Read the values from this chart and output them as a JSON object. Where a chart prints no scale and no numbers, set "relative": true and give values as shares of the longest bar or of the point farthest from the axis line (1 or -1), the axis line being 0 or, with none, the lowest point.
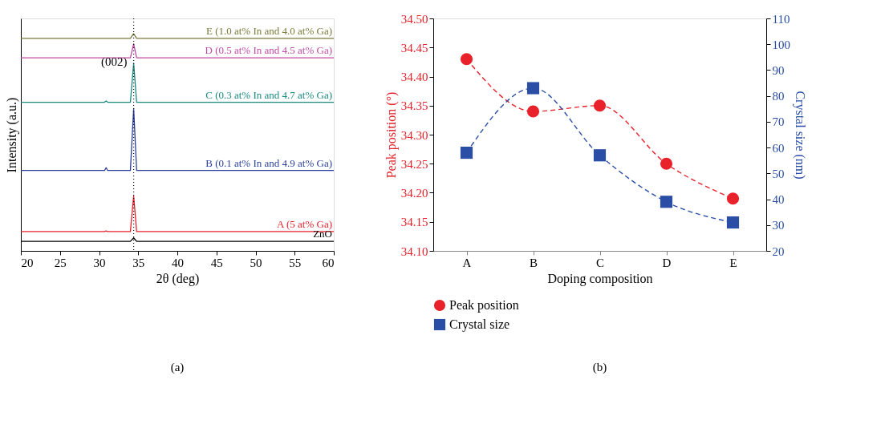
{
  "chart_data": [
    {
      "type": "line",
      "relative": true,
      "xlabel": "2θ (deg)",
      "ylabel": "Intensity (a.u.)",
      "xlim": [
        20,
        60
      ],
      "xticks": [
        20,
        25,
        30,
        35,
        40,
        45,
        50,
        55,
        60
      ],
      "legend": false,
      "grid": false,
      "tick_labels": "x",
      "x": [
        20,
        30.7,
        30.9,
        31.1,
        34.0,
        34.42,
        34.8,
        60
      ],
      "series": [
        {
          "name": "ZnO",
          "color": "#000000",
          "values": [
            0.044,
            0.044,
            0.044,
            0.044,
            0.044,
            0.06,
            0.044,
            0.044
          ]
        },
        {
          "name": "A (5 at% Ga)",
          "color": "#e8212a",
          "values": [
            0.089,
            0.089,
            0.092,
            0.089,
            0.089,
            0.253,
            0.089,
            0.089
          ]
        },
        {
          "name": "B (0.1 at% In and 4.9 at% Ga)",
          "color": "#2a3f9c",
          "values": [
            0.37,
            0.37,
            0.383,
            0.37,
            0.37,
            0.655,
            0.37,
            0.37
          ]
        },
        {
          "name": "C (0.3 at% In and 4.7 at% Ga)",
          "color": "#1a8a80",
          "values": [
            0.684,
            0.684,
            0.69,
            0.684,
            0.684,
            0.864,
            0.684,
            0.684
          ]
        },
        {
          "name": "D (0.5 at% In and 4.5 at% Ga)",
          "color": "#c04aa6",
          "values": [
            0.889,
            0.889,
            0.889,
            0.889,
            0.889,
            0.953,
            0.889,
            0.889
          ]
        },
        {
          "name": "E (1.0 at% In and 4.0 at% Ga)",
          "color": "#7a7a3a",
          "values": [
            0.978,
            0.978,
            0.978,
            0.978,
            0.978,
            1.0,
            0.978,
            0.978
          ]
        }
      ],
      "ref_lines": [
        {
          "axis": "x",
          "value": 34.42,
          "color": "#000000",
          "line_style": "dotted"
        }
      ],
      "annotations": [
        {
          "text": "(002)",
          "x": 34.42,
          "y": 0.87
        },
        "(a)"
      ]
    },
    {
      "type": "line",
      "categories": [
        "A",
        "B",
        "C",
        "D",
        "E"
      ],
      "xlabel": "Doping composition",
      "ylabel": "Peak position (°)",
      "y2label": "Crystal size (nm)",
      "ylim": [
        34.1,
        34.5
      ],
      "yticks": [
        {
          "value": 34.1,
          "label": "34.10"
        },
        34.15,
        {
          "value": 34.2,
          "label": "34.20"
        },
        34.25,
        {
          "value": 34.3,
          "label": "34.30"
        },
        34.35,
        {
          "value": 34.4,
          "label": "34.40"
        },
        34.45,
        {
          "value": 34.5,
          "label": "34.50"
        }
      ],
      "y2lim": [
        20,
        110
      ],
      "y2ticks": [
        20,
        30,
        40,
        50,
        60,
        70,
        80,
        90,
        100,
        110
      ],
      "legend": "bottom",
      "grid": false,
      "series": [
        {
          "name": "Peak position",
          "color": "#e8212a",
          "marker": "circle",
          "line_style": "dashed",
          "values": [
            34.43,
            34.34,
            34.35,
            34.25,
            34.19
          ]
        },
        {
          "name": "Crystal size",
          "color": "#2a4ea6",
          "marker": "square",
          "line_style": "dashed",
          "axis": "y2",
          "values": [
            58,
            83,
            57,
            39,
            31
          ]
        }
      ],
      "annotations": [
        "(b)"
      ]
    }
  ]
}
